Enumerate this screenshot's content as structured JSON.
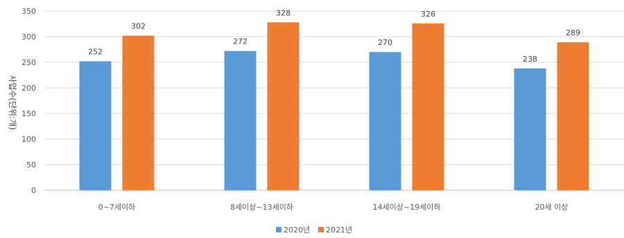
{
  "chart_data": {
    "type": "bar",
    "categories": [
      "0~7세이하",
      "8세이상~13세이하",
      "14세이상~19세이하",
      "20세 이상"
    ],
    "series": [
      {
        "name": "2020년",
        "values": [
          252,
          272,
          270,
          238
        ],
        "color": "#5b9bd5"
      },
      {
        "name": "2021년",
        "values": [
          302,
          328,
          326,
          289
        ],
        "color": "#ed7d31"
      }
    ],
    "ylabel": "사업수(단위:개)",
    "ylim": [
      0,
      350
    ],
    "yticks": [
      0,
      50,
      100,
      150,
      200,
      250,
      300,
      350
    ],
    "grid": true,
    "legend": "bottom"
  }
}
